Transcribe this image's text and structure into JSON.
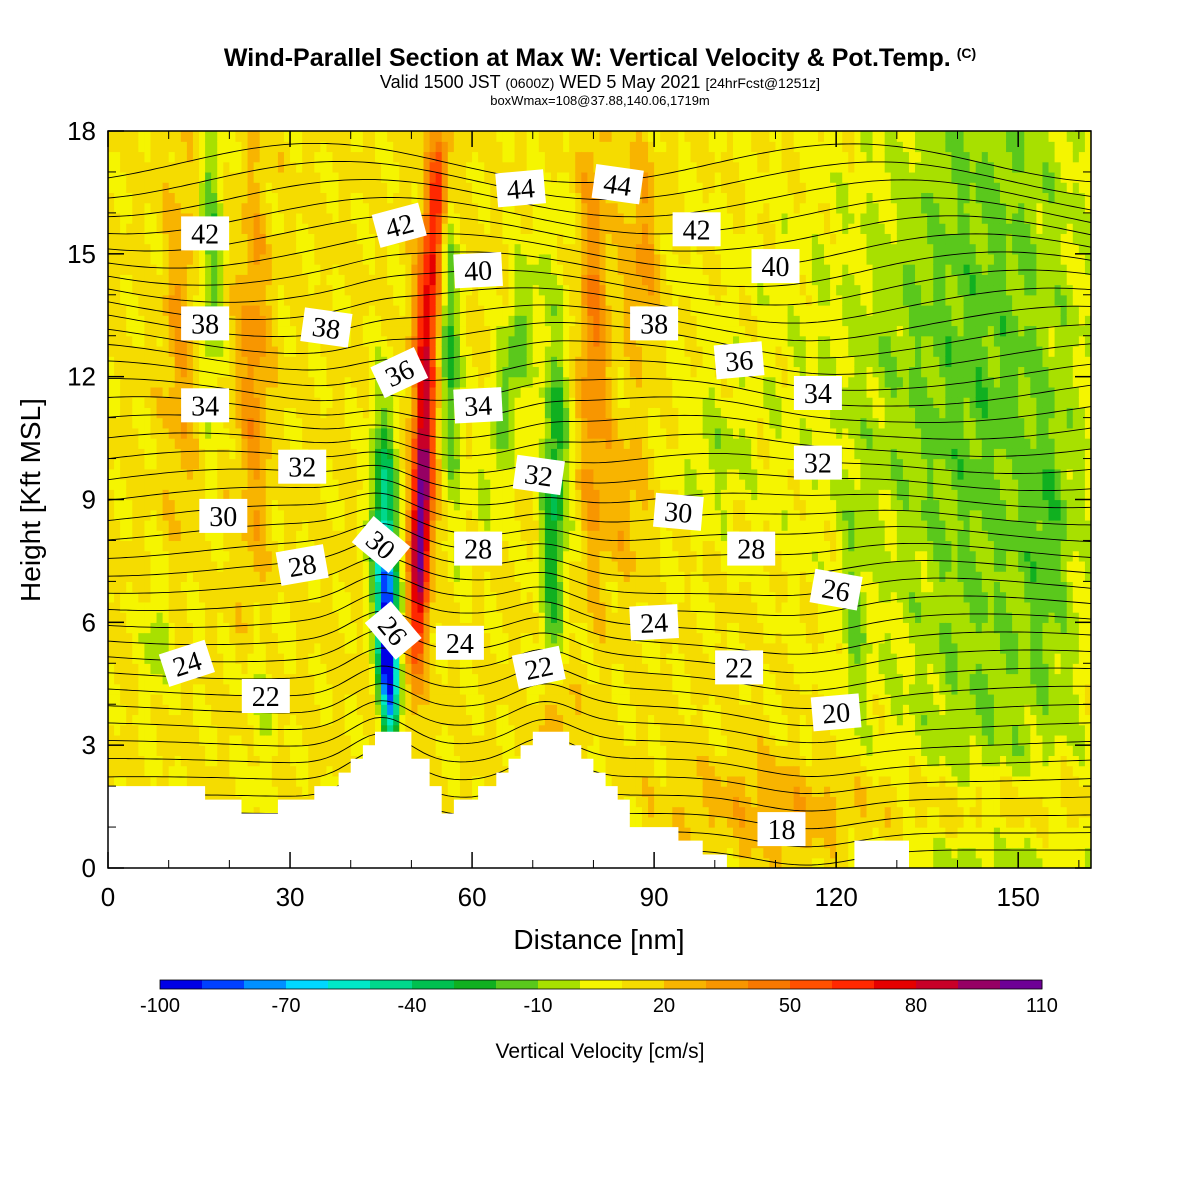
{
  "title": {
    "main": "Wind-Parallel Section at Max W: Vertical Velocity & Pot.Temp.",
    "copyright": "(C)",
    "valid_prefix": "Valid 1500 JST",
    "valid_utc": "(0600Z)",
    "valid_date": "WED 5 May 2021",
    "forecast": "[24hrFcst@1251z]",
    "boxwmax": "boxWmax=108@37.88,140.06,1719m"
  },
  "chart_data": {
    "type": "heatmap",
    "xlabel": "Distance [nm]",
    "ylabel": "Height [Kft MSL]",
    "xlim": [
      0,
      162
    ],
    "ylim": [
      0,
      18
    ],
    "x_ticks": [
      0,
      30,
      60,
      90,
      120,
      150
    ],
    "y_ticks": [
      0,
      3,
      6,
      9,
      12,
      15,
      18
    ],
    "colorbar": {
      "label": "Vertical Velocity [cm/s]",
      "tick_labels": [
        -100,
        -70,
        -40,
        -10,
        20,
        50,
        80,
        110
      ],
      "levels": [
        -100,
        -90,
        -80,
        -70,
        -60,
        -50,
        -40,
        -30,
        -20,
        -10,
        0,
        10,
        20,
        30,
        40,
        50,
        60,
        70,
        80,
        90,
        100,
        110
      ],
      "colors": [
        "#0000e6",
        "#0040ff",
        "#0090ff",
        "#00d8ff",
        "#00e8c8",
        "#00d88c",
        "#00c050",
        "#10b020",
        "#5ac81c",
        "#a8e000",
        "#f5f500",
        "#f5dc00",
        "#f8b400",
        "#f89600",
        "#f87800",
        "#ff5000",
        "#ff2800",
        "#e60000",
        "#c80028",
        "#960064",
        "#6e0096"
      ]
    },
    "terrain_kft": [
      2,
      2,
      2,
      2,
      2,
      2,
      2,
      2,
      2,
      2,
      2,
      2,
      2,
      2,
      2,
      2,
      1.67,
      1.67,
      1.67,
      1.67,
      1.67,
      1.67,
      1.33,
      1.33,
      1.33,
      1.33,
      1.33,
      1.33,
      1.67,
      1.67,
      1.67,
      1.67,
      1.67,
      1.67,
      2,
      2,
      2,
      2,
      2.33,
      2.33,
      2.67,
      2.67,
      3,
      3,
      3.33,
      3.33,
      3.33,
      3.33,
      3.33,
      3.33,
      2.67,
      2.67,
      2.67,
      2,
      2,
      1.33,
      1.33,
      1.67,
      1.67,
      1.67,
      1.67,
      2,
      2,
      2,
      2.33,
      2.33,
      2.67,
      2.67,
      3,
      3,
      3.33,
      3.33,
      3.33,
      3.33,
      3.33,
      3.33,
      3,
      3,
      2.67,
      2.67,
      2.33,
      2.33,
      2,
      2,
      1.67,
      1.67,
      1,
      1,
      1,
      1,
      1,
      1,
      1,
      1,
      0.67,
      0.67,
      0.67,
      0.67,
      0.33,
      0.33,
      0.33,
      0.33,
      0,
      0,
      0,
      0,
      0,
      0,
      0,
      0,
      0,
      0,
      0,
      0,
      0,
      0,
      0,
      0,
      0,
      0,
      0,
      0,
      0,
      0.67,
      0.67,
      0.67,
      0.67,
      0.67,
      0.67,
      0.67,
      0.67,
      0.67,
      0,
      0,
      0,
      0,
      0,
      0,
      0,
      0,
      0,
      0,
      0,
      0,
      0,
      0,
      0,
      0,
      0,
      0,
      0,
      0,
      0,
      0,
      0,
      0,
      0,
      0,
      0,
      0,
      0,
      0,
      0,
      0,
      0,
      0,
      0,
      0,
      0,
      0
    ],
    "contour_labels": [
      {
        "text": "42",
        "x": 16,
        "y": 15.5,
        "rot": 0
      },
      {
        "text": "38",
        "x": 16,
        "y": 13.3,
        "rot": 0
      },
      {
        "text": "34",
        "x": 16,
        "y": 11.3,
        "rot": 0
      },
      {
        "text": "30",
        "x": 19,
        "y": 8.6,
        "rot": 0
      },
      {
        "text": "24",
        "x": 13,
        "y": 5.0,
        "rot": -18
      },
      {
        "text": "22",
        "x": 26,
        "y": 4.2,
        "rot": 0
      },
      {
        "text": "28",
        "x": 32,
        "y": 7.4,
        "rot": -10
      },
      {
        "text": "32",
        "x": 32,
        "y": 9.8,
        "rot": 0
      },
      {
        "text": "38",
        "x": 36,
        "y": 13.2,
        "rot": 8
      },
      {
        "text": "42",
        "x": 48,
        "y": 15.7,
        "rot": -15
      },
      {
        "text": "36",
        "x": 48,
        "y": 12.1,
        "rot": -25
      },
      {
        "text": "30",
        "x": 45,
        "y": 7.9,
        "rot": 40
      },
      {
        "text": "26",
        "x": 47,
        "y": 5.8,
        "rot": 50
      },
      {
        "text": "44",
        "x": 68,
        "y": 16.6,
        "rot": -5
      },
      {
        "text": "40",
        "x": 61,
        "y": 14.6,
        "rot": -3
      },
      {
        "text": "34",
        "x": 61,
        "y": 11.3,
        "rot": -3
      },
      {
        "text": "28",
        "x": 61,
        "y": 7.8,
        "rot": 0
      },
      {
        "text": "24",
        "x": 58,
        "y": 5.5,
        "rot": 0
      },
      {
        "text": "32",
        "x": 71,
        "y": 9.6,
        "rot": 8
      },
      {
        "text": "22",
        "x": 71,
        "y": 4.9,
        "rot": -12
      },
      {
        "text": "44",
        "x": 84,
        "y": 16.7,
        "rot": 8
      },
      {
        "text": "42",
        "x": 97,
        "y": 15.6,
        "rot": 0
      },
      {
        "text": "38",
        "x": 90,
        "y": 13.3,
        "rot": 0
      },
      {
        "text": "30",
        "x": 94,
        "y": 8.7,
        "rot": 5
      },
      {
        "text": "24",
        "x": 90,
        "y": 6.0,
        "rot": -3
      },
      {
        "text": "40",
        "x": 110,
        "y": 14.7,
        "rot": 0
      },
      {
        "text": "36",
        "x": 104,
        "y": 12.4,
        "rot": -5
      },
      {
        "text": "28",
        "x": 106,
        "y": 7.8,
        "rot": 0
      },
      {
        "text": "22",
        "x": 104,
        "y": 4.9,
        "rot": 0
      },
      {
        "text": "34",
        "x": 117,
        "y": 11.6,
        "rot": 0
      },
      {
        "text": "32",
        "x": 117,
        "y": 9.9,
        "rot": 0
      },
      {
        "text": "26",
        "x": 120,
        "y": 6.8,
        "rot": 10
      },
      {
        "text": "20",
        "x": 120,
        "y": 3.8,
        "rot": -5
      },
      {
        "text": "18",
        "x": 111,
        "y": 0.95,
        "rot": 0
      }
    ]
  }
}
